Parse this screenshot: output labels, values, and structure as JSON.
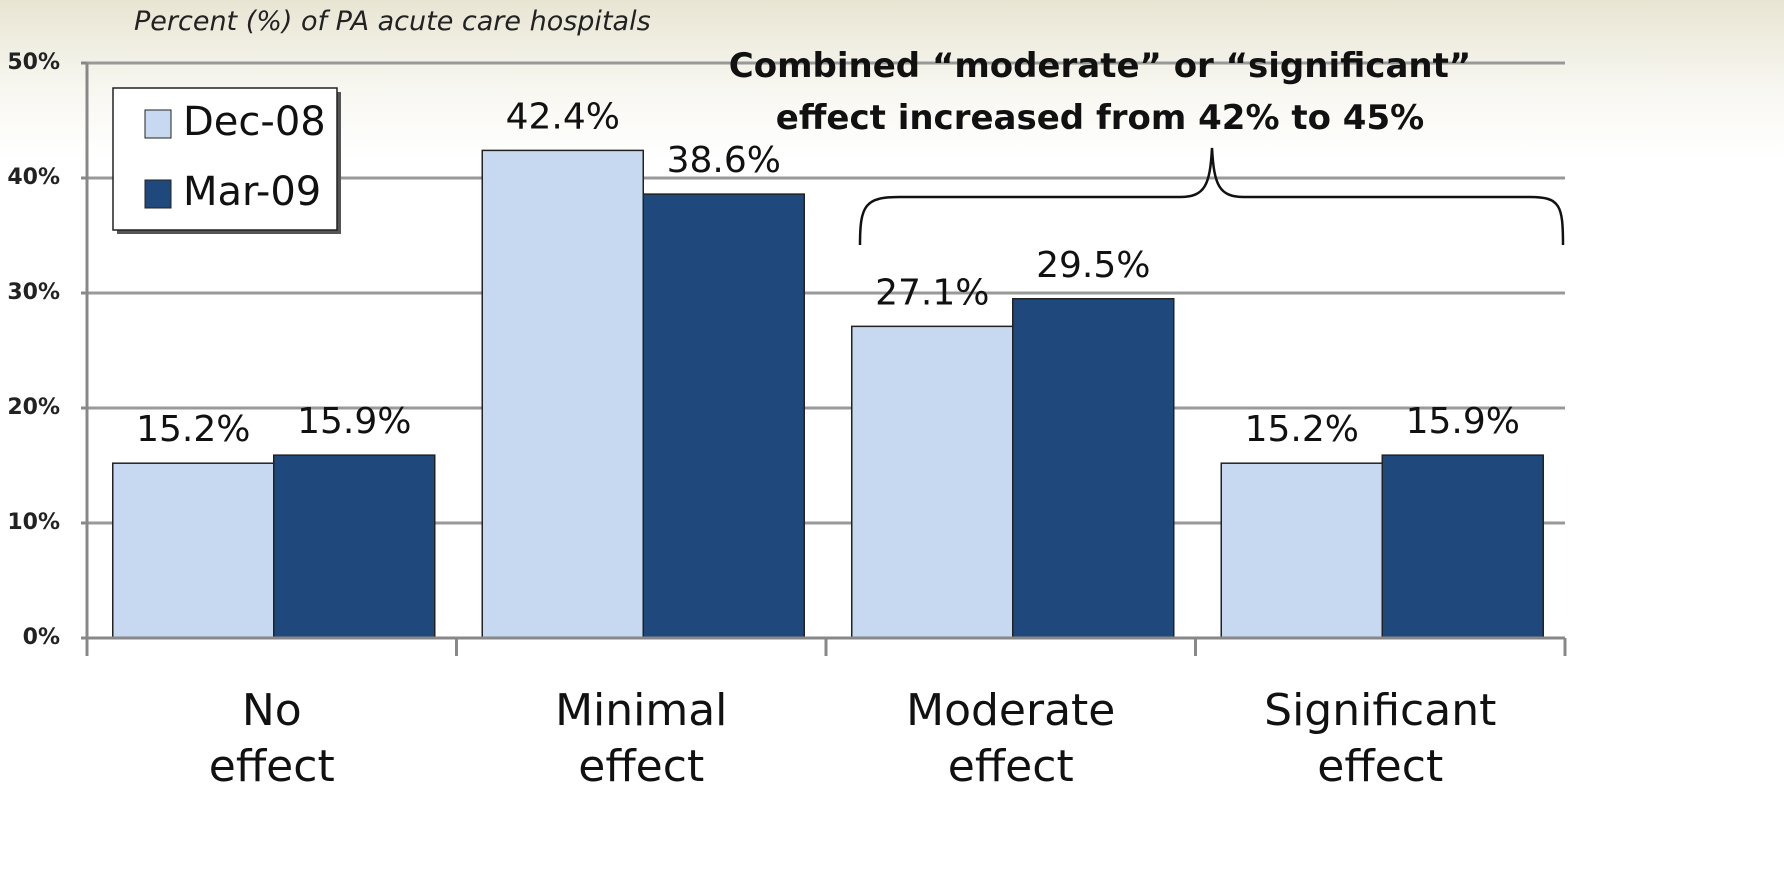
{
  "chart_data": {
    "type": "bar",
    "subtitle": "Percent (%) of PA acute care hospitals",
    "annotation": "Combined “moderate” or “significant”\neffect increased from 42% to 45%",
    "categories": [
      "No\neffect",
      "Minimal\neffect",
      "Moderate\neffect",
      "Significant\neffect"
    ],
    "series": [
      {
        "name": "Dec-08",
        "color": "#c6d9f1",
        "values": [
          15.2,
          42.4,
          27.1,
          15.2
        ],
        "value_labels": [
          "15.2%",
          "42.4%",
          "27.1%",
          "15.2%"
        ]
      },
      {
        "name": "Mar-09",
        "color": "#1f497d",
        "values": [
          15.9,
          38.6,
          29.5,
          15.9
        ],
        "value_labels": [
          "15.9%",
          "38.6%",
          "29.5%",
          "15.9%"
        ]
      }
    ],
    "ylim": [
      0,
      50
    ],
    "yticks": [
      {
        "value": 0,
        "label": "0%"
      },
      {
        "value": 10,
        "label": "10%"
      },
      {
        "value": 20,
        "label": "20%"
      },
      {
        "value": 30,
        "label": "30%"
      },
      {
        "value": 40,
        "label": "40%"
      },
      {
        "value": 50,
        "label": "50%"
      }
    ],
    "grid": true,
    "legend": "upper left"
  }
}
